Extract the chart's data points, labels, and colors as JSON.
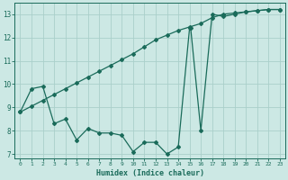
{
  "xlabel": "Humidex (Indice chaleur)",
  "background_color": "#cce8e4",
  "grid_color": "#aacfca",
  "line_color": "#1a6b5a",
  "x_min": 0,
  "x_max": 23,
  "y_min": 7,
  "y_max": 13,
  "x_ticks": [
    0,
    1,
    2,
    3,
    4,
    5,
    6,
    7,
    8,
    9,
    10,
    11,
    12,
    13,
    14,
    15,
    16,
    17,
    18,
    19,
    20,
    21,
    22,
    23
  ],
  "y_ticks": [
    7,
    8,
    9,
    10,
    11,
    12,
    13
  ],
  "series1_x": [
    0,
    1,
    2,
    3,
    4,
    5,
    6,
    7,
    8,
    9,
    10,
    11,
    12,
    13,
    14,
    15,
    15.1,
    16,
    17,
    18,
    19,
    20,
    21,
    22,
    23
  ],
  "series1_y": [
    8.8,
    9.8,
    9.9,
    8.3,
    8.5,
    7.6,
    8.1,
    7.9,
    7.9,
    7.8,
    7.1,
    7.5,
    7.5,
    7.0,
    7.3,
    12.4,
    12.4,
    8.0,
    13.0,
    12.9,
    13.0,
    13.1,
    13.15,
    13.2,
    13.2
  ],
  "series2_x": [
    0,
    1,
    2,
    3,
    4,
    5,
    6,
    7,
    8,
    9,
    10,
    11,
    12,
    13,
    14,
    15,
    16,
    17,
    18,
    19,
    20,
    21,
    22,
    23
  ],
  "series2_y": [
    8.8,
    9.05,
    9.3,
    9.55,
    9.8,
    10.05,
    10.3,
    10.55,
    10.8,
    11.05,
    11.3,
    11.6,
    11.9,
    12.1,
    12.3,
    12.45,
    12.6,
    12.85,
    13.0,
    13.05,
    13.1,
    13.15,
    13.2,
    13.2
  ]
}
